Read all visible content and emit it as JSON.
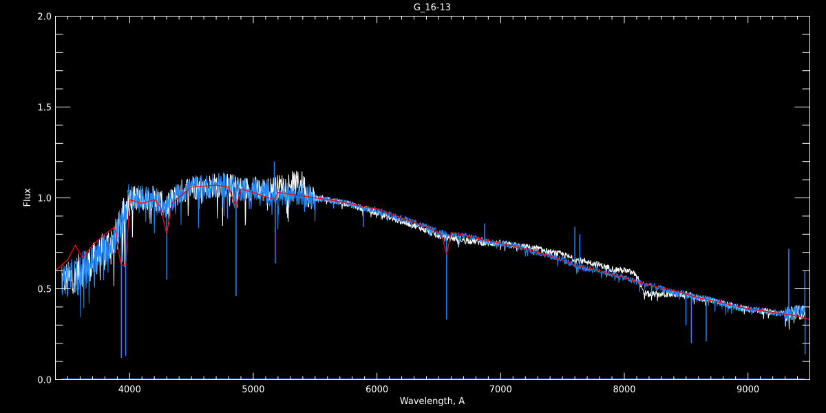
{
  "chart_data": {
    "type": "line",
    "title": "G_16-13",
    "xlabel": "Wavelength, A",
    "ylabel": "Flux",
    "xlim": [
      3400,
      9500
    ],
    "ylim": [
      0.0,
      2.0
    ],
    "x_ticks": [
      4000,
      5000,
      6000,
      7000,
      8000,
      9000
    ],
    "x_tick_labels": [
      "4000",
      "5000",
      "6000",
      "7000",
      "8000",
      "9000"
    ],
    "x_minor_step": 100,
    "y_ticks": [
      0.0,
      0.5,
      1.0,
      1.5,
      2.0
    ],
    "y_tick_labels": [
      "0.0",
      "0.5",
      "1.0",
      "1.5",
      "2.0"
    ],
    "y_minor_step": 0.1,
    "grid": false,
    "background": "#000000",
    "series": [
      {
        "color": "#ffffff",
        "x": [
          3450,
          3500,
          3600,
          3700,
          3800,
          3900,
          4000,
          4100,
          4200,
          4300,
          4400,
          4500,
          4600,
          4700,
          4800,
          4900,
          5000,
          5100,
          5200,
          5300,
          5400,
          5450,
          5500,
          5600,
          5700,
          5800,
          5900,
          6000,
          6100,
          6200,
          6300,
          6400,
          6500,
          6600,
          6700,
          6800,
          6900,
          7000,
          7100,
          7200,
          7300,
          7400,
          7500,
          7600,
          7700,
          7800,
          7900,
          8000,
          8100,
          8150,
          8200,
          8300,
          8400,
          8500,
          8600,
          8700,
          8800,
          8900,
          9000,
          9100,
          9200,
          9300,
          9400,
          9460
        ],
        "y": [
          0.55,
          0.55,
          0.6,
          0.65,
          0.72,
          0.8,
          1.0,
          1.0,
          1.0,
          0.95,
          1.03,
          1.06,
          1.06,
          1.07,
          1.07,
          1.05,
          1.05,
          1.04,
          1.06,
          1.08,
          1.08,
          1.01,
          1.0,
          0.99,
          0.98,
          0.96,
          0.94,
          0.92,
          0.89,
          0.87,
          0.85,
          0.82,
          0.79,
          0.78,
          0.77,
          0.76,
          0.75,
          0.75,
          0.74,
          0.73,
          0.72,
          0.7,
          0.69,
          0.66,
          0.65,
          0.63,
          0.61,
          0.6,
          0.58,
          0.48,
          0.47,
          0.47,
          0.47,
          0.47,
          0.45,
          0.44,
          0.42,
          0.4,
          0.39,
          0.38,
          0.37,
          0.36,
          0.37,
          0.37
        ]
      },
      {
        "color": "#1e88ff",
        "x": [
          3450,
          3500,
          3600,
          3700,
          3800,
          3900,
          4000,
          4100,
          4200,
          4300,
          4400,
          4500,
          4600,
          4700,
          4800,
          4900,
          5000,
          5100,
          5200,
          5300,
          5400,
          5450,
          5500,
          5600,
          5700,
          5800,
          5900,
          6000,
          6100,
          6200,
          6300,
          6400,
          6500,
          6600,
          6700,
          6800,
          6900,
          7000,
          7100,
          7200,
          7300,
          7400,
          7500,
          7600,
          7700,
          7800,
          7900,
          8000,
          8100,
          8150,
          8200,
          8300,
          8400,
          8500,
          8600,
          8700,
          8800,
          8900,
          9000,
          9100,
          9200,
          9300,
          9400,
          9460
        ],
        "y": [
          0.55,
          0.55,
          0.6,
          0.65,
          0.72,
          0.8,
          1.0,
          1.0,
          1.0,
          0.95,
          1.03,
          1.06,
          1.06,
          1.07,
          1.07,
          1.05,
          1.05,
          1.04,
          1.0,
          1.02,
          1.02,
          1.01,
          1.0,
          0.99,
          0.98,
          0.96,
          0.94,
          0.93,
          0.91,
          0.89,
          0.87,
          0.84,
          0.81,
          0.8,
          0.79,
          0.78,
          0.76,
          0.75,
          0.74,
          0.72,
          0.7,
          0.68,
          0.66,
          0.63,
          0.61,
          0.6,
          0.58,
          0.56,
          0.54,
          0.53,
          0.52,
          0.5,
          0.48,
          0.47,
          0.45,
          0.44,
          0.42,
          0.4,
          0.39,
          0.38,
          0.37,
          0.36,
          0.37,
          0.37
        ],
        "features": [
          {
            "x": 3933,
            "y": 0.12
          },
          {
            "x": 3968,
            "y": 0.13
          },
          {
            "x": 4300,
            "y": 0.55
          },
          {
            "x": 4861,
            "y": 0.46
          },
          {
            "x": 5170,
            "y": 1.2
          },
          {
            "x": 5178,
            "y": 0.64
          },
          {
            "x": 5890,
            "y": 0.84
          },
          {
            "x": 6563,
            "y": 0.33
          },
          {
            "x": 6870,
            "y": 0.86
          },
          {
            "x": 7600,
            "y": 0.84
          },
          {
            "x": 7640,
            "y": 0.8
          },
          {
            "x": 8498,
            "y": 0.3
          },
          {
            "x": 8542,
            "y": 0.2
          },
          {
            "x": 8662,
            "y": 0.21
          },
          {
            "x": 9330,
            "y": 0.72
          },
          {
            "x": 9460,
            "y": 0.6
          },
          {
            "x": 9462,
            "y": 0.14
          }
        ]
      },
      {
        "color": "#ff0000",
        "x": [
          3400,
          3500,
          3560,
          3620,
          3700,
          3800,
          3880,
          3930,
          3970,
          4000,
          4100,
          4200,
          4250,
          4300,
          4340,
          4500,
          4700,
          4800,
          4860,
          4900,
          5000,
          5170,
          5200,
          5400,
          5500,
          5700,
          5900,
          6000,
          6200,
          6400,
          6520,
          6563,
          6600,
          6800,
          7000,
          7200,
          7400,
          7600,
          7800,
          8000,
          8200,
          8400,
          8600,
          8800,
          9000,
          9200,
          9400,
          9500
        ],
        "y": [
          0.6,
          0.66,
          0.74,
          0.67,
          0.74,
          0.8,
          0.84,
          0.63,
          0.63,
          0.99,
          0.97,
          0.99,
          0.95,
          0.8,
          0.97,
          1.06,
          1.07,
          1.06,
          0.95,
          1.05,
          1.03,
          0.99,
          1.03,
          1.01,
          1.0,
          0.98,
          0.95,
          0.94,
          0.89,
          0.84,
          0.8,
          0.69,
          0.81,
          0.78,
          0.75,
          0.72,
          0.68,
          0.63,
          0.6,
          0.56,
          0.52,
          0.49,
          0.45,
          0.42,
          0.39,
          0.37,
          0.35,
          0.33
        ]
      },
      {
        "color": "#1e88ff",
        "x": [
          3450,
          9460
        ],
        "y": [
          0.005,
          0.005
        ]
      }
    ]
  }
}
